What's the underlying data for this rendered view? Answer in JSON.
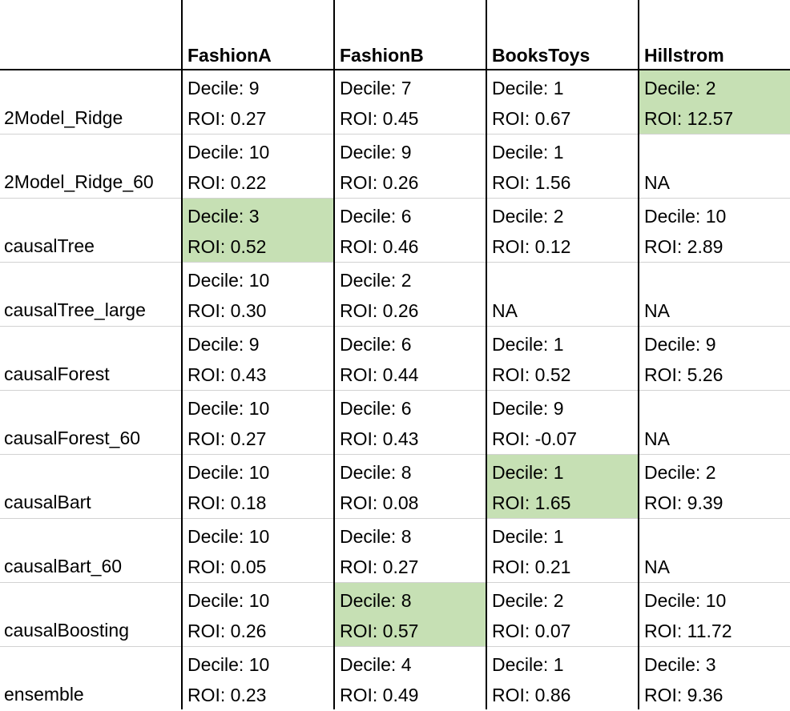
{
  "columns": [
    "FashionA",
    "FashionB",
    "BooksToys",
    "Hillstrom"
  ],
  "rows": [
    {
      "model": "2Model_Ridge",
      "cells": [
        {
          "decile": "Decile: 9",
          "roi": "ROI: 0.27",
          "highlight": false
        },
        {
          "decile": "Decile: 7",
          "roi": "ROI: 0.45",
          "highlight": false
        },
        {
          "decile": "Decile: 1",
          "roi": "ROI: 0.67",
          "highlight": false
        },
        {
          "decile": "Decile: 2",
          "roi": "ROI: 12.57",
          "highlight": true
        }
      ]
    },
    {
      "model": "2Model_Ridge_60",
      "cells": [
        {
          "decile": "Decile: 10",
          "roi": "ROI: 0.22",
          "highlight": false
        },
        {
          "decile": "Decile: 9",
          "roi": "ROI: 0.26",
          "highlight": false
        },
        {
          "decile": "Decile: 1",
          "roi": "ROI: 1.56",
          "highlight": false
        },
        {
          "decile": "",
          "roi": "NA",
          "highlight": false
        }
      ]
    },
    {
      "model": "causalTree",
      "cells": [
        {
          "decile": "Decile: 3",
          "roi": "ROI: 0.52",
          "highlight": true
        },
        {
          "decile": "Decile: 6",
          "roi": "ROI: 0.46",
          "highlight": false
        },
        {
          "decile": "Decile: 2",
          "roi": "ROI: 0.12",
          "highlight": false
        },
        {
          "decile": "Decile: 10",
          "roi": "ROI: 2.89",
          "highlight": false
        }
      ]
    },
    {
      "model": "causalTree_large",
      "cells": [
        {
          "decile": "Decile: 10",
          "roi": "ROI: 0.30",
          "highlight": false
        },
        {
          "decile": "Decile: 2",
          "roi": "ROI: 0.26",
          "highlight": false
        },
        {
          "decile": "",
          "roi": "NA",
          "highlight": false
        },
        {
          "decile": "",
          "roi": "NA",
          "highlight": false
        }
      ]
    },
    {
      "model": "causalForest",
      "cells": [
        {
          "decile": "Decile: 9",
          "roi": "ROI: 0.43",
          "highlight": false
        },
        {
          "decile": "Decile: 6",
          "roi": "ROI: 0.44",
          "highlight": false
        },
        {
          "decile": "Decile: 1",
          "roi": "ROI: 0.52",
          "highlight": false
        },
        {
          "decile": "Decile: 9",
          "roi": "ROI: 5.26",
          "highlight": false
        }
      ]
    },
    {
      "model": "causalForest_60",
      "cells": [
        {
          "decile": "Decile: 10",
          "roi": "ROI: 0.27",
          "highlight": false
        },
        {
          "decile": "Decile: 6",
          "roi": "ROI: 0.43",
          "highlight": false
        },
        {
          "decile": "Decile: 9",
          "roi": "ROI: -0.07",
          "highlight": false
        },
        {
          "decile": "",
          "roi": "NA",
          "highlight": false
        }
      ]
    },
    {
      "model": "causalBart",
      "cells": [
        {
          "decile": "Decile: 10",
          "roi": "ROI: 0.18",
          "highlight": false
        },
        {
          "decile": "Decile: 8",
          "roi": "ROI: 0.08",
          "highlight": false
        },
        {
          "decile": "Decile: 1",
          "roi": "ROI: 1.65",
          "highlight": true
        },
        {
          "decile": "Decile: 2",
          "roi": "ROI: 9.39",
          "highlight": false
        }
      ]
    },
    {
      "model": "causalBart_60",
      "cells": [
        {
          "decile": "Decile: 10",
          "roi": "ROI: 0.05",
          "highlight": false
        },
        {
          "decile": "Decile: 8",
          "roi": "ROI: 0.27",
          "highlight": false
        },
        {
          "decile": "Decile: 1",
          "roi": "ROI: 0.21",
          "highlight": false
        },
        {
          "decile": "",
          "roi": "NA",
          "highlight": false
        }
      ]
    },
    {
      "model": "causalBoosting",
      "cells": [
        {
          "decile": "Decile: 10",
          "roi": "ROI: 0.26",
          "highlight": false
        },
        {
          "decile": "Decile: 8",
          "roi": "ROI: 0.57",
          "highlight": true
        },
        {
          "decile": "Decile: 2",
          "roi": "ROI: 0.07",
          "highlight": false
        },
        {
          "decile": "Decile: 10",
          "roi": "ROI: 11.72",
          "highlight": false
        }
      ]
    },
    {
      "model": "ensemble",
      "cells": [
        {
          "decile": "Decile: 10",
          "roi": "ROI: 0.23",
          "highlight": false
        },
        {
          "decile": "Decile: 4",
          "roi": "ROI: 0.49",
          "highlight": false
        },
        {
          "decile": "Decile: 1",
          "roi": "ROI: 0.86",
          "highlight": false
        },
        {
          "decile": "Decile: 3",
          "roi": "ROI: 9.36",
          "highlight": false
        }
      ]
    }
  ],
  "colors": {
    "highlight": "#c6e0b4",
    "border": "#000000",
    "gridline": "#d2d2d2"
  }
}
